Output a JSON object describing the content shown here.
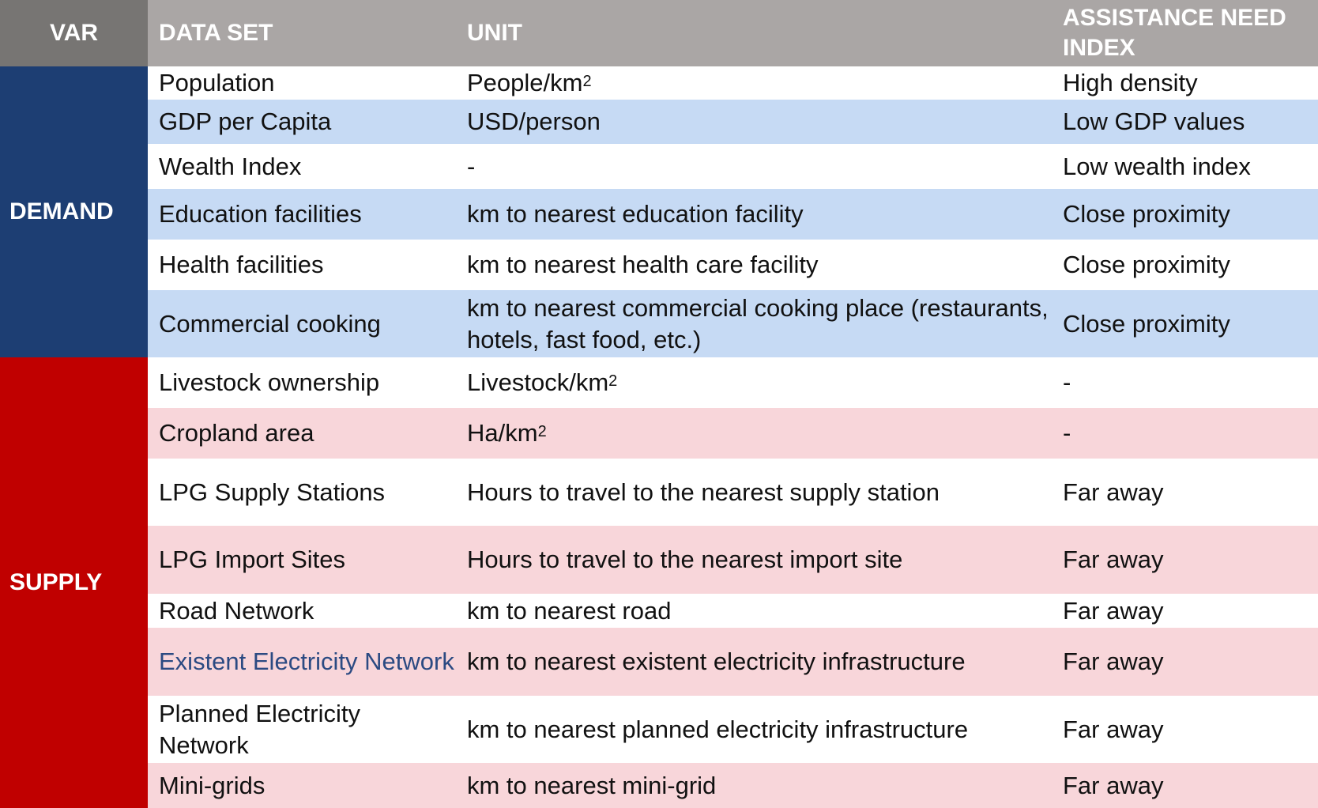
{
  "header": {
    "var": "VAR",
    "dataset": "DATA SET",
    "unit": "UNIT",
    "index": "ASSISTANCE NEED INDEX"
  },
  "groups": {
    "demand": "DEMAND",
    "supply": "SUPPLY"
  },
  "colors": {
    "header_var": "#777573",
    "header": "#aaa6a5",
    "demand": "#1d3e73",
    "supply": "#c00000",
    "demand_stripe": "#c6daf4",
    "supply_stripe": "#f8d6da",
    "link_text": "#2b4a82"
  },
  "rows": [
    {
      "dataset": "Population",
      "unit_base": "People/km",
      "unit_sup": "2",
      "index": "High density"
    },
    {
      "dataset": "GDP per Capita",
      "unit": "USD/person",
      "index": "Low GDP values"
    },
    {
      "dataset": "Wealth Index",
      "unit": "-",
      "index": "Low wealth index"
    },
    {
      "dataset": "Education facilities",
      "unit": "km to nearest education facility",
      "index": "Close proximity"
    },
    {
      "dataset": "Health facilities",
      "unit": "km to nearest health care facility",
      "index": "Close proximity"
    },
    {
      "dataset": "Commercial cooking",
      "unit": "km to nearest commercial cooking place (restaurants, hotels, fast food, etc.)",
      "index": "Close proximity"
    },
    {
      "dataset": "Livestock ownership",
      "unit_base": "Livestock/km",
      "unit_sup": "2",
      "index": "-"
    },
    {
      "dataset": "Cropland area",
      "unit_base": "Ha/km",
      "unit_sup": "2",
      "index": "-"
    },
    {
      "dataset": "LPG Supply Stations",
      "unit": "Hours to travel to the nearest supply station",
      "index": "Far away"
    },
    {
      "dataset": "LPG Import Sites",
      "unit": "Hours to travel to the nearest import site",
      "index": "Far away"
    },
    {
      "dataset": "Road Network",
      "unit": "km to nearest road",
      "index": "Far away"
    },
    {
      "dataset": "Existent Electricity Network",
      "unit": "km to nearest existent electricity infrastructure",
      "index": "Far away"
    },
    {
      "dataset": "Planned Electricity Network",
      "unit": "km to nearest planned electricity infrastructure",
      "index": "Far away"
    },
    {
      "dataset": "Mini-grids",
      "unit": "km to nearest mini-grid",
      "index": "Far away"
    }
  ]
}
